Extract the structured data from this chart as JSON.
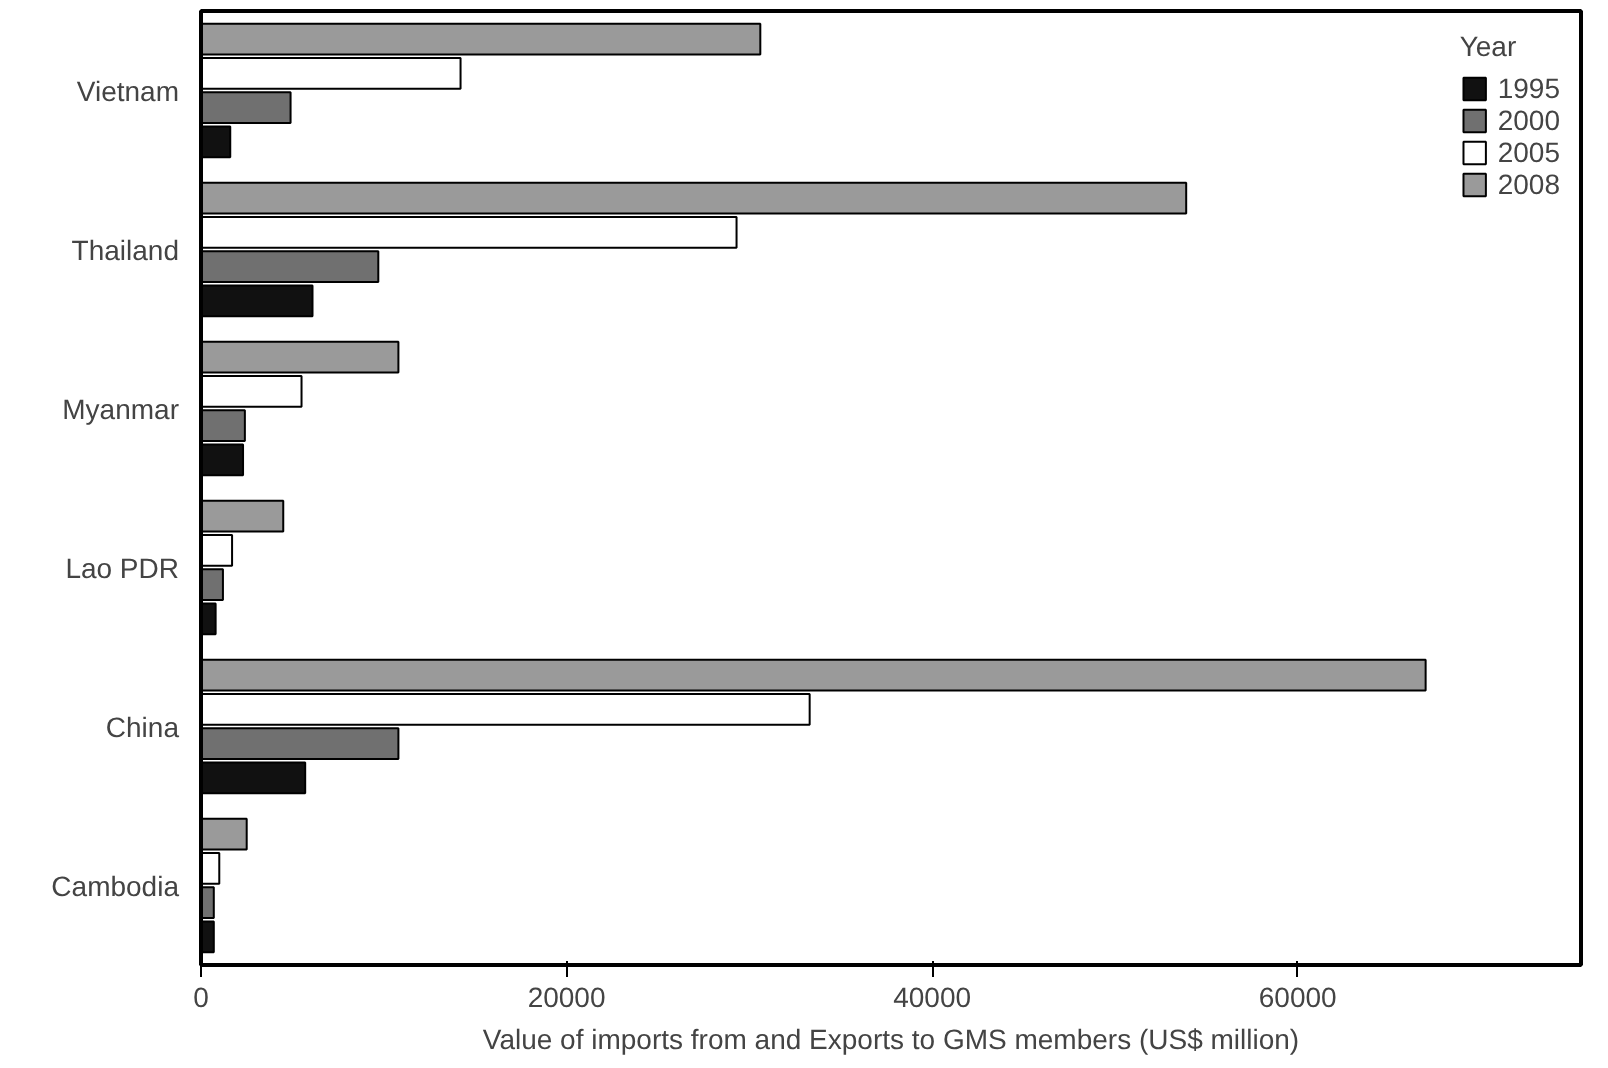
{
  "chart_data": {
    "type": "bar",
    "orientation": "horizontal",
    "xlabel": "Value of imports from and Exports to GMS members (US$ million)",
    "legend_title": "Year",
    "legend": "top right",
    "grid": false,
    "categories": [
      "Vietnam",
      "Thailand",
      "Myanmar",
      "Lao PDR",
      "China",
      "Cambodia"
    ],
    "xlim": [
      0,
      75500
    ],
    "xticks": [
      0,
      20000,
      40000,
      60000
    ],
    "series": [
      {
        "name": "1995",
        "color": "#111111",
        "values": [
          1600,
          6100,
          2300,
          800,
          5700,
          700
        ]
      },
      {
        "name": "2000",
        "color": "#707070",
        "values": [
          4900,
          9700,
          2400,
          1200,
          10800,
          700
        ]
      },
      {
        "name": "2005",
        "color": "#ffffff",
        "values": [
          14200,
          29300,
          5500,
          1700,
          33300,
          1000
        ]
      },
      {
        "name": "2008",
        "color": "#9a9a9a",
        "values": [
          30600,
          53900,
          10800,
          4500,
          67000,
          2500
        ]
      }
    ]
  }
}
